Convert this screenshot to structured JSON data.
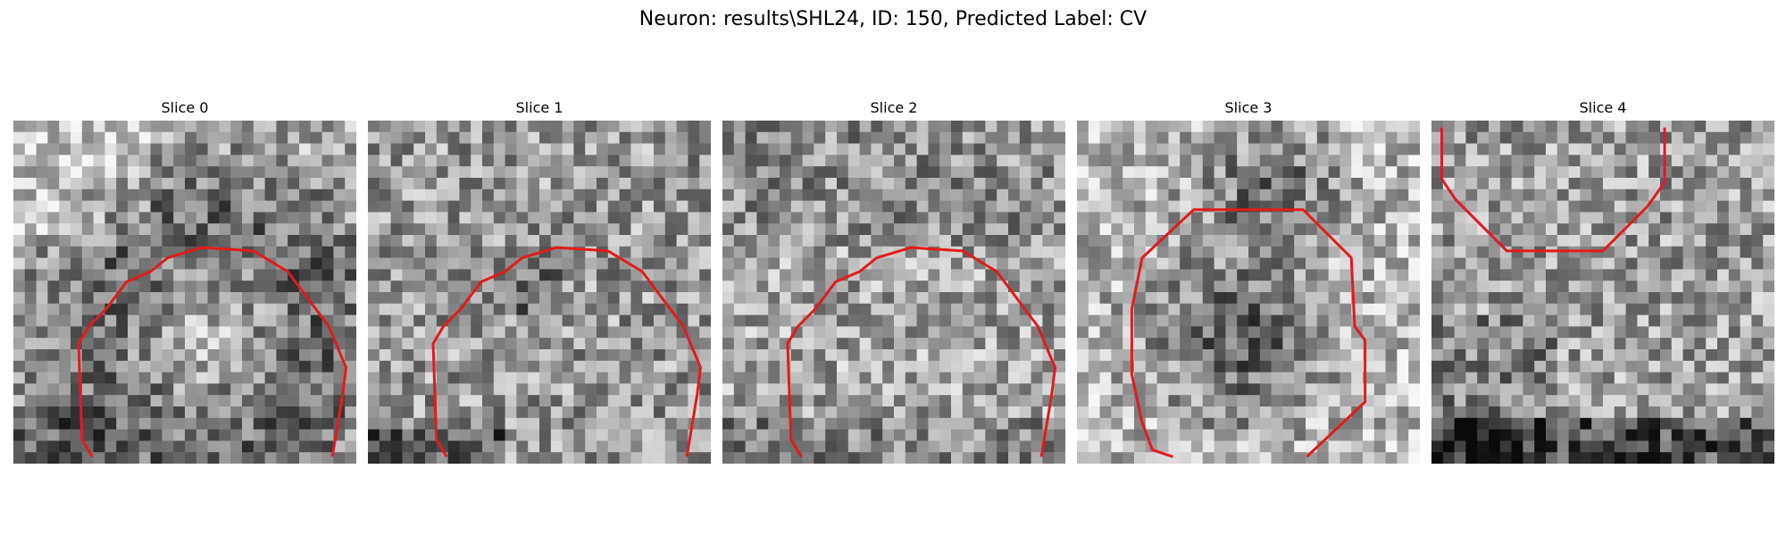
{
  "figure": {
    "title": "Neuron: results\\SHL24, ID: 150, Predicted Label: CV"
  },
  "panels": [
    {
      "title": "Slice 0",
      "seed": 11,
      "pattern": "ring-bright-center",
      "contour": "arch"
    },
    {
      "title": "Slice 1",
      "seed": 23,
      "pattern": "noisy",
      "contour": "arch"
    },
    {
      "title": "Slice 2",
      "seed": 37,
      "pattern": "noisy-bright",
      "contour": "arch"
    },
    {
      "title": "Slice 3",
      "seed": 51,
      "pattern": "dark-blob",
      "contour": "octagon"
    },
    {
      "title": "Slice 4",
      "seed": 67,
      "pattern": "dark-bottom",
      "contour": "u-top"
    }
  ],
  "colors": {
    "contour": "#e41a1c"
  }
}
